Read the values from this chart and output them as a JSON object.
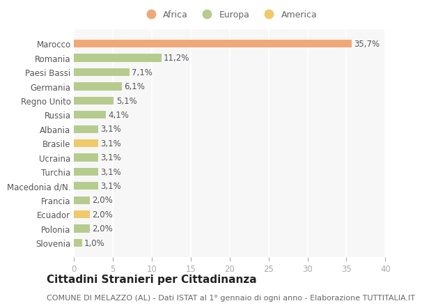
{
  "categories": [
    "Slovenia",
    "Polonia",
    "Ecuador",
    "Francia",
    "Macedonia d/N.",
    "Turchia",
    "Ucraina",
    "Brasile",
    "Albania",
    "Russia",
    "Regno Unito",
    "Germania",
    "Paesi Bassi",
    "Romania",
    "Marocco"
  ],
  "values": [
    1.0,
    2.0,
    2.0,
    2.0,
    3.1,
    3.1,
    3.1,
    3.1,
    3.1,
    4.1,
    5.1,
    6.1,
    7.1,
    11.2,
    35.7
  ],
  "colors": [
    "#b5cc8e",
    "#b5cc8e",
    "#f0c96a",
    "#b5cc8e",
    "#b5cc8e",
    "#b5cc8e",
    "#b5cc8e",
    "#f0c96a",
    "#b5cc8e",
    "#b5cc8e",
    "#b5cc8e",
    "#b5cc8e",
    "#b5cc8e",
    "#b5cc8e",
    "#f0a878"
  ],
  "legend_labels": [
    "Africa",
    "Europa",
    "America"
  ],
  "legend_colors": [
    "#f0a878",
    "#b5cc8e",
    "#f0c96a"
  ],
  "title": "Cittadini Stranieri per Cittadinanza",
  "subtitle": "COMUNE DI MELAZZO (AL) - Dati ISTAT al 1° gennaio di ogni anno - Elaborazione TUTTITALIA.IT",
  "xlim": [
    0,
    40
  ],
  "xticks": [
    0,
    5,
    10,
    15,
    20,
    25,
    30,
    35,
    40
  ],
  "background_color": "#ffffff",
  "plot_bg_color": "#f7f7f7",
  "grid_color": "#ffffff",
  "bar_height": 0.55,
  "title_fontsize": 11,
  "subtitle_fontsize": 8,
  "label_fontsize": 8.5,
  "tick_fontsize": 8.5,
  "legend_fontsize": 9,
  "value_label_fontsize": 8.5
}
